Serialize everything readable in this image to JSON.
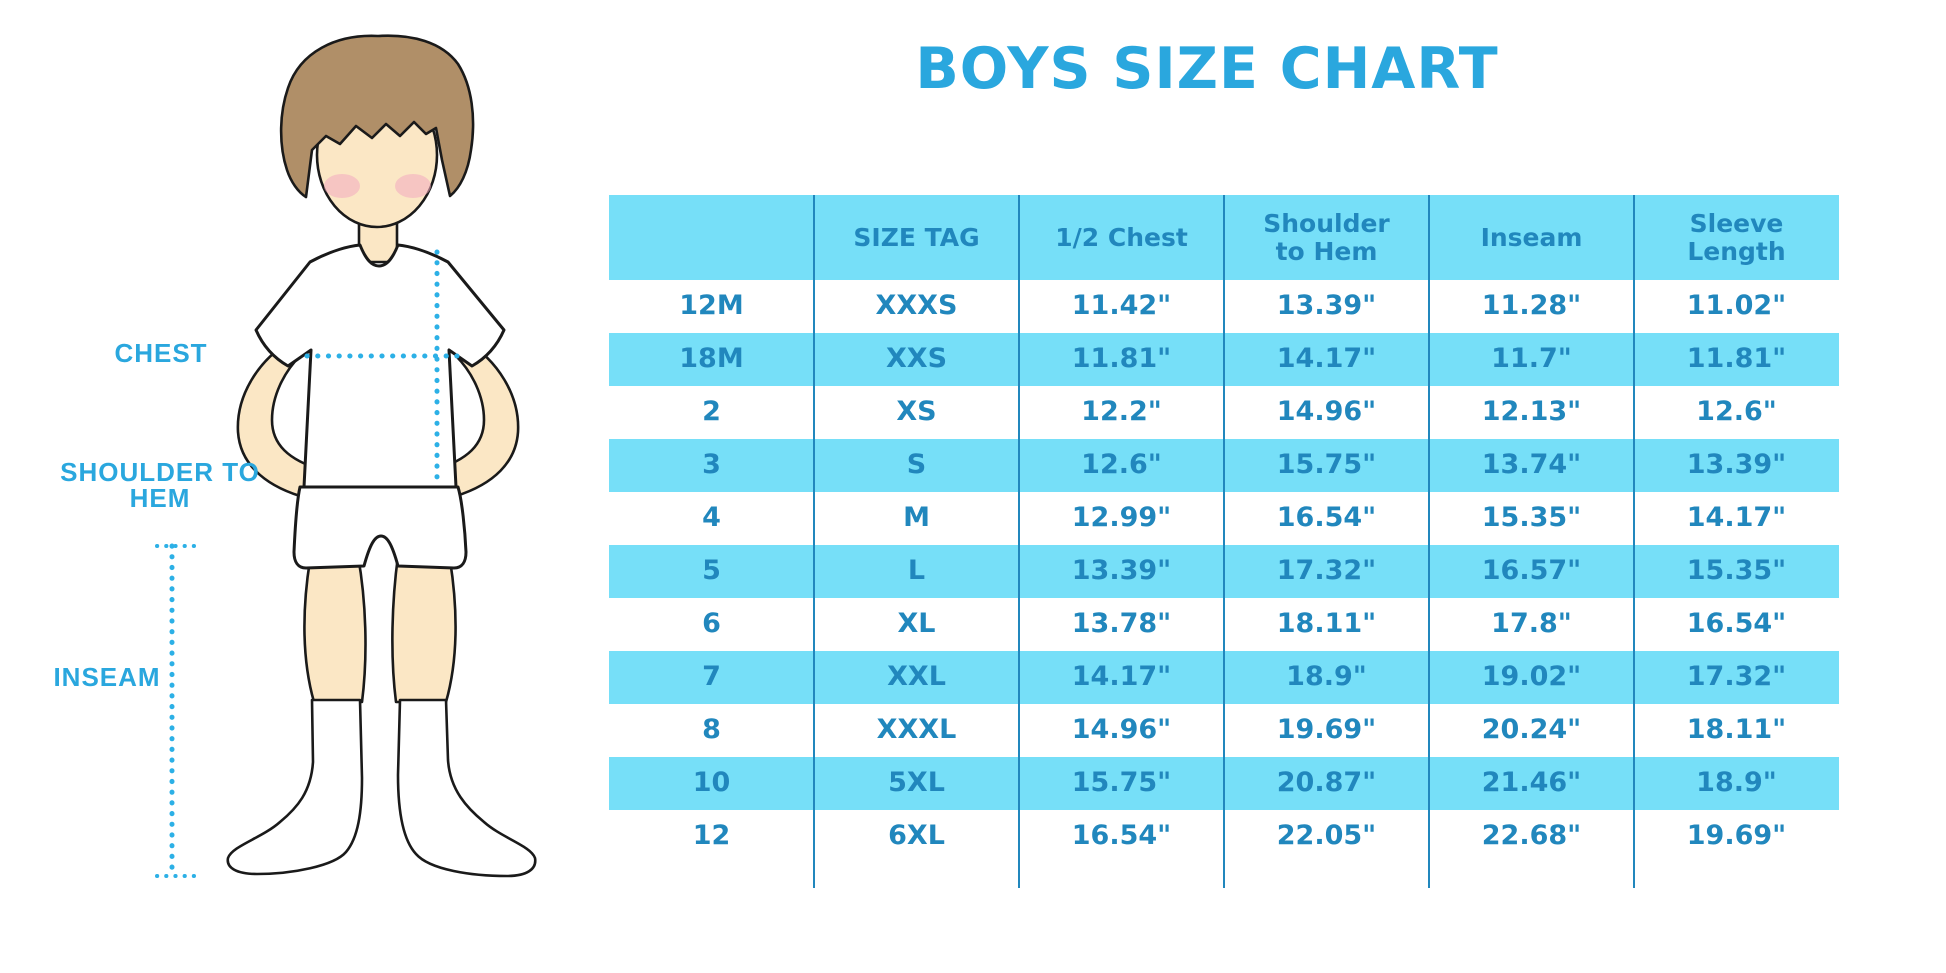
{
  "title": "BOYS SIZE CHART",
  "diagram": {
    "labels": {
      "chest": "CHEST",
      "shoulder_to_hem": "SHOULDER TO HEM",
      "inseam": "INSEAM"
    }
  },
  "chart_data": {
    "type": "table",
    "title": "BOYS SIZE CHART",
    "columns": [
      "",
      "SIZE TAG",
      "1/2 Chest",
      "Shoulder to Hem",
      "Inseam",
      "Sleeve Length"
    ],
    "rows": [
      [
        "12M",
        "XXXS",
        "11.42\"",
        "13.39\"",
        "11.28\"",
        "11.02\""
      ],
      [
        "18M",
        "XXS",
        "11.81\"",
        "14.17\"",
        "11.7\"",
        "11.81\""
      ],
      [
        "2",
        "XS",
        "12.2\"",
        "14.96\"",
        "12.13\"",
        "12.6\""
      ],
      [
        "3",
        "S",
        "12.6\"",
        "15.75\"",
        "13.74\"",
        "13.39\""
      ],
      [
        "4",
        "M",
        "12.99\"",
        "16.54\"",
        "15.35\"",
        "14.17\""
      ],
      [
        "5",
        "L",
        "13.39\"",
        "17.32\"",
        "16.57\"",
        "15.35\""
      ],
      [
        "6",
        "XL",
        "13.78\"",
        "18.11\"",
        "17.8\"",
        "16.54\""
      ],
      [
        "7",
        "XXL",
        "14.17\"",
        "18.9\"",
        "19.02\"",
        "17.32\""
      ],
      [
        "8",
        "XXXL",
        "14.96\"",
        "19.69\"",
        "20.24\"",
        "18.11\""
      ],
      [
        "10",
        "5XL",
        "15.75\"",
        "20.87\"",
        "21.46\"",
        "18.9\""
      ],
      [
        "12",
        "6XL",
        "16.54\"",
        "22.05\"",
        "22.68\"",
        "19.69\""
      ]
    ],
    "row_striping": "white / light-cyan alternating, header light-cyan",
    "grid": "vertical column separators only"
  },
  "colors": {
    "accent_blue": "#2AA7DE",
    "fill_cyan": "#76DFF8",
    "text_blue": "#2187BD",
    "dotted_line_blue": "#2CB0E6",
    "skin": "#FBE7C5",
    "hair_brown": "#B08F68",
    "cheek_pink": "#F2A9C0",
    "outline": "#1A1A1A"
  }
}
